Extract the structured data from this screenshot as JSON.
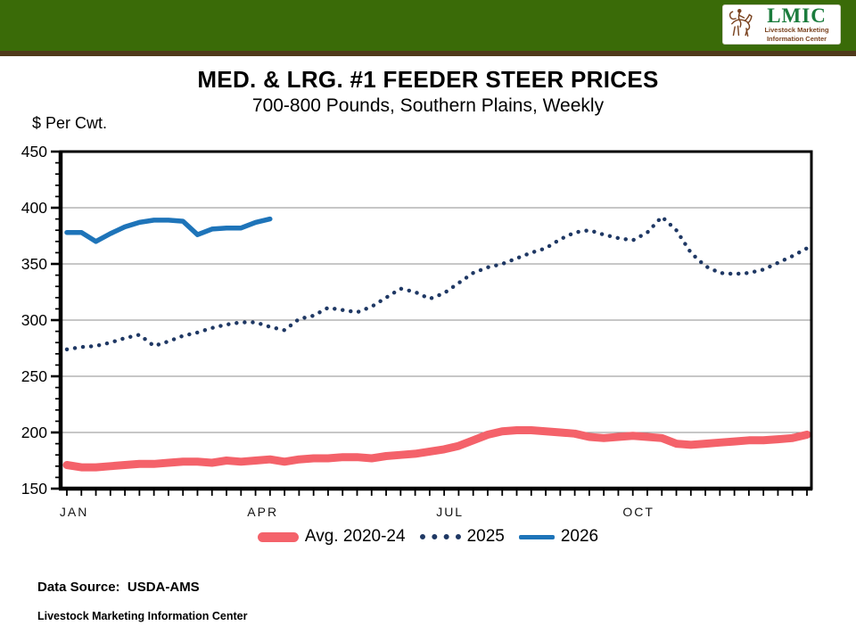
{
  "header": {
    "logo": {
      "acronym": "LMIC",
      "line1": "Livestock Marketing",
      "line2": "Information Center"
    }
  },
  "title": "MED. & LRG. #1 FEEDER STEER PRICES",
  "subtitle": "700-800 Pounds, Southern Plains, Weekly",
  "y_axis_unit": "$ Per Cwt.",
  "footer": {
    "data_source": "Data Source:  USDA-AMS",
    "org": "Livestock Marketing Information Center"
  },
  "colors": {
    "header_green": "#3A6B08",
    "header_brown": "#4F3A1B",
    "logo_green": "#1B7C3D",
    "logo_brown": "#7B4421",
    "gridline": "#8F8F8F",
    "axis": "#000000"
  },
  "chart_data": {
    "type": "line",
    "title": "MED. & LRG. #1 FEEDER STEER PRICES",
    "subtitle": "700-800 Pounds, Southern Plains, Weekly",
    "ylabel": "$ Per Cwt.",
    "ylim": [
      150,
      450
    ],
    "ytick_step": 50,
    "ytick_minor_step": 10,
    "grid": "horizontal-majors",
    "legend_position": "bottom-center",
    "x_unit": "weekly",
    "weeks_per_year": 52,
    "x_labels": [
      {
        "label": "JAN",
        "week": 0.5
      },
      {
        "label": "APR",
        "week": 13.5
      },
      {
        "label": "JUL",
        "week": 26.4
      },
      {
        "label": "OCT",
        "week": 39.4
      }
    ],
    "series": [
      {
        "id": "avg-2020-24",
        "name": "Avg. 2020-24",
        "style": "thick",
        "color": "#F4626A",
        "values": [
          171,
          169,
          169,
          170,
          171,
          172,
          172,
          173,
          174,
          174,
          173,
          175,
          174,
          175,
          176,
          174,
          176,
          177,
          177,
          178,
          178,
          177,
          179,
          180,
          181,
          183,
          185,
          188,
          193,
          198,
          201,
          202,
          202,
          201,
          200,
          199,
          196,
          195,
          196,
          197,
          196,
          195,
          190,
          189,
          190,
          191,
          192,
          193,
          193,
          194,
          195,
          198
        ]
      },
      {
        "id": "y2025",
        "name": "2025",
        "style": "dotted",
        "color": "#1F3864",
        "values": [
          274,
          276,
          277,
          280,
          284,
          287,
          277,
          281,
          286,
          289,
          293,
          296,
          298,
          298,
          294,
          291,
          301,
          304,
          311,
          309,
          307,
          312,
          320,
          328,
          325,
          319,
          324,
          333,
          342,
          347,
          350,
          355,
          360,
          364,
          372,
          378,
          380,
          376,
          373,
          371,
          378,
          392,
          380,
          360,
          348,
          342,
          341,
          342,
          345,
          351,
          357,
          364
        ]
      },
      {
        "id": "y2026",
        "name": "2026",
        "style": "solid",
        "color": "#1E74B9",
        "values": [
          378,
          378,
          370,
          377,
          383,
          387,
          389,
          389,
          388,
          376,
          381,
          382,
          382,
          387,
          390
        ]
      }
    ]
  }
}
